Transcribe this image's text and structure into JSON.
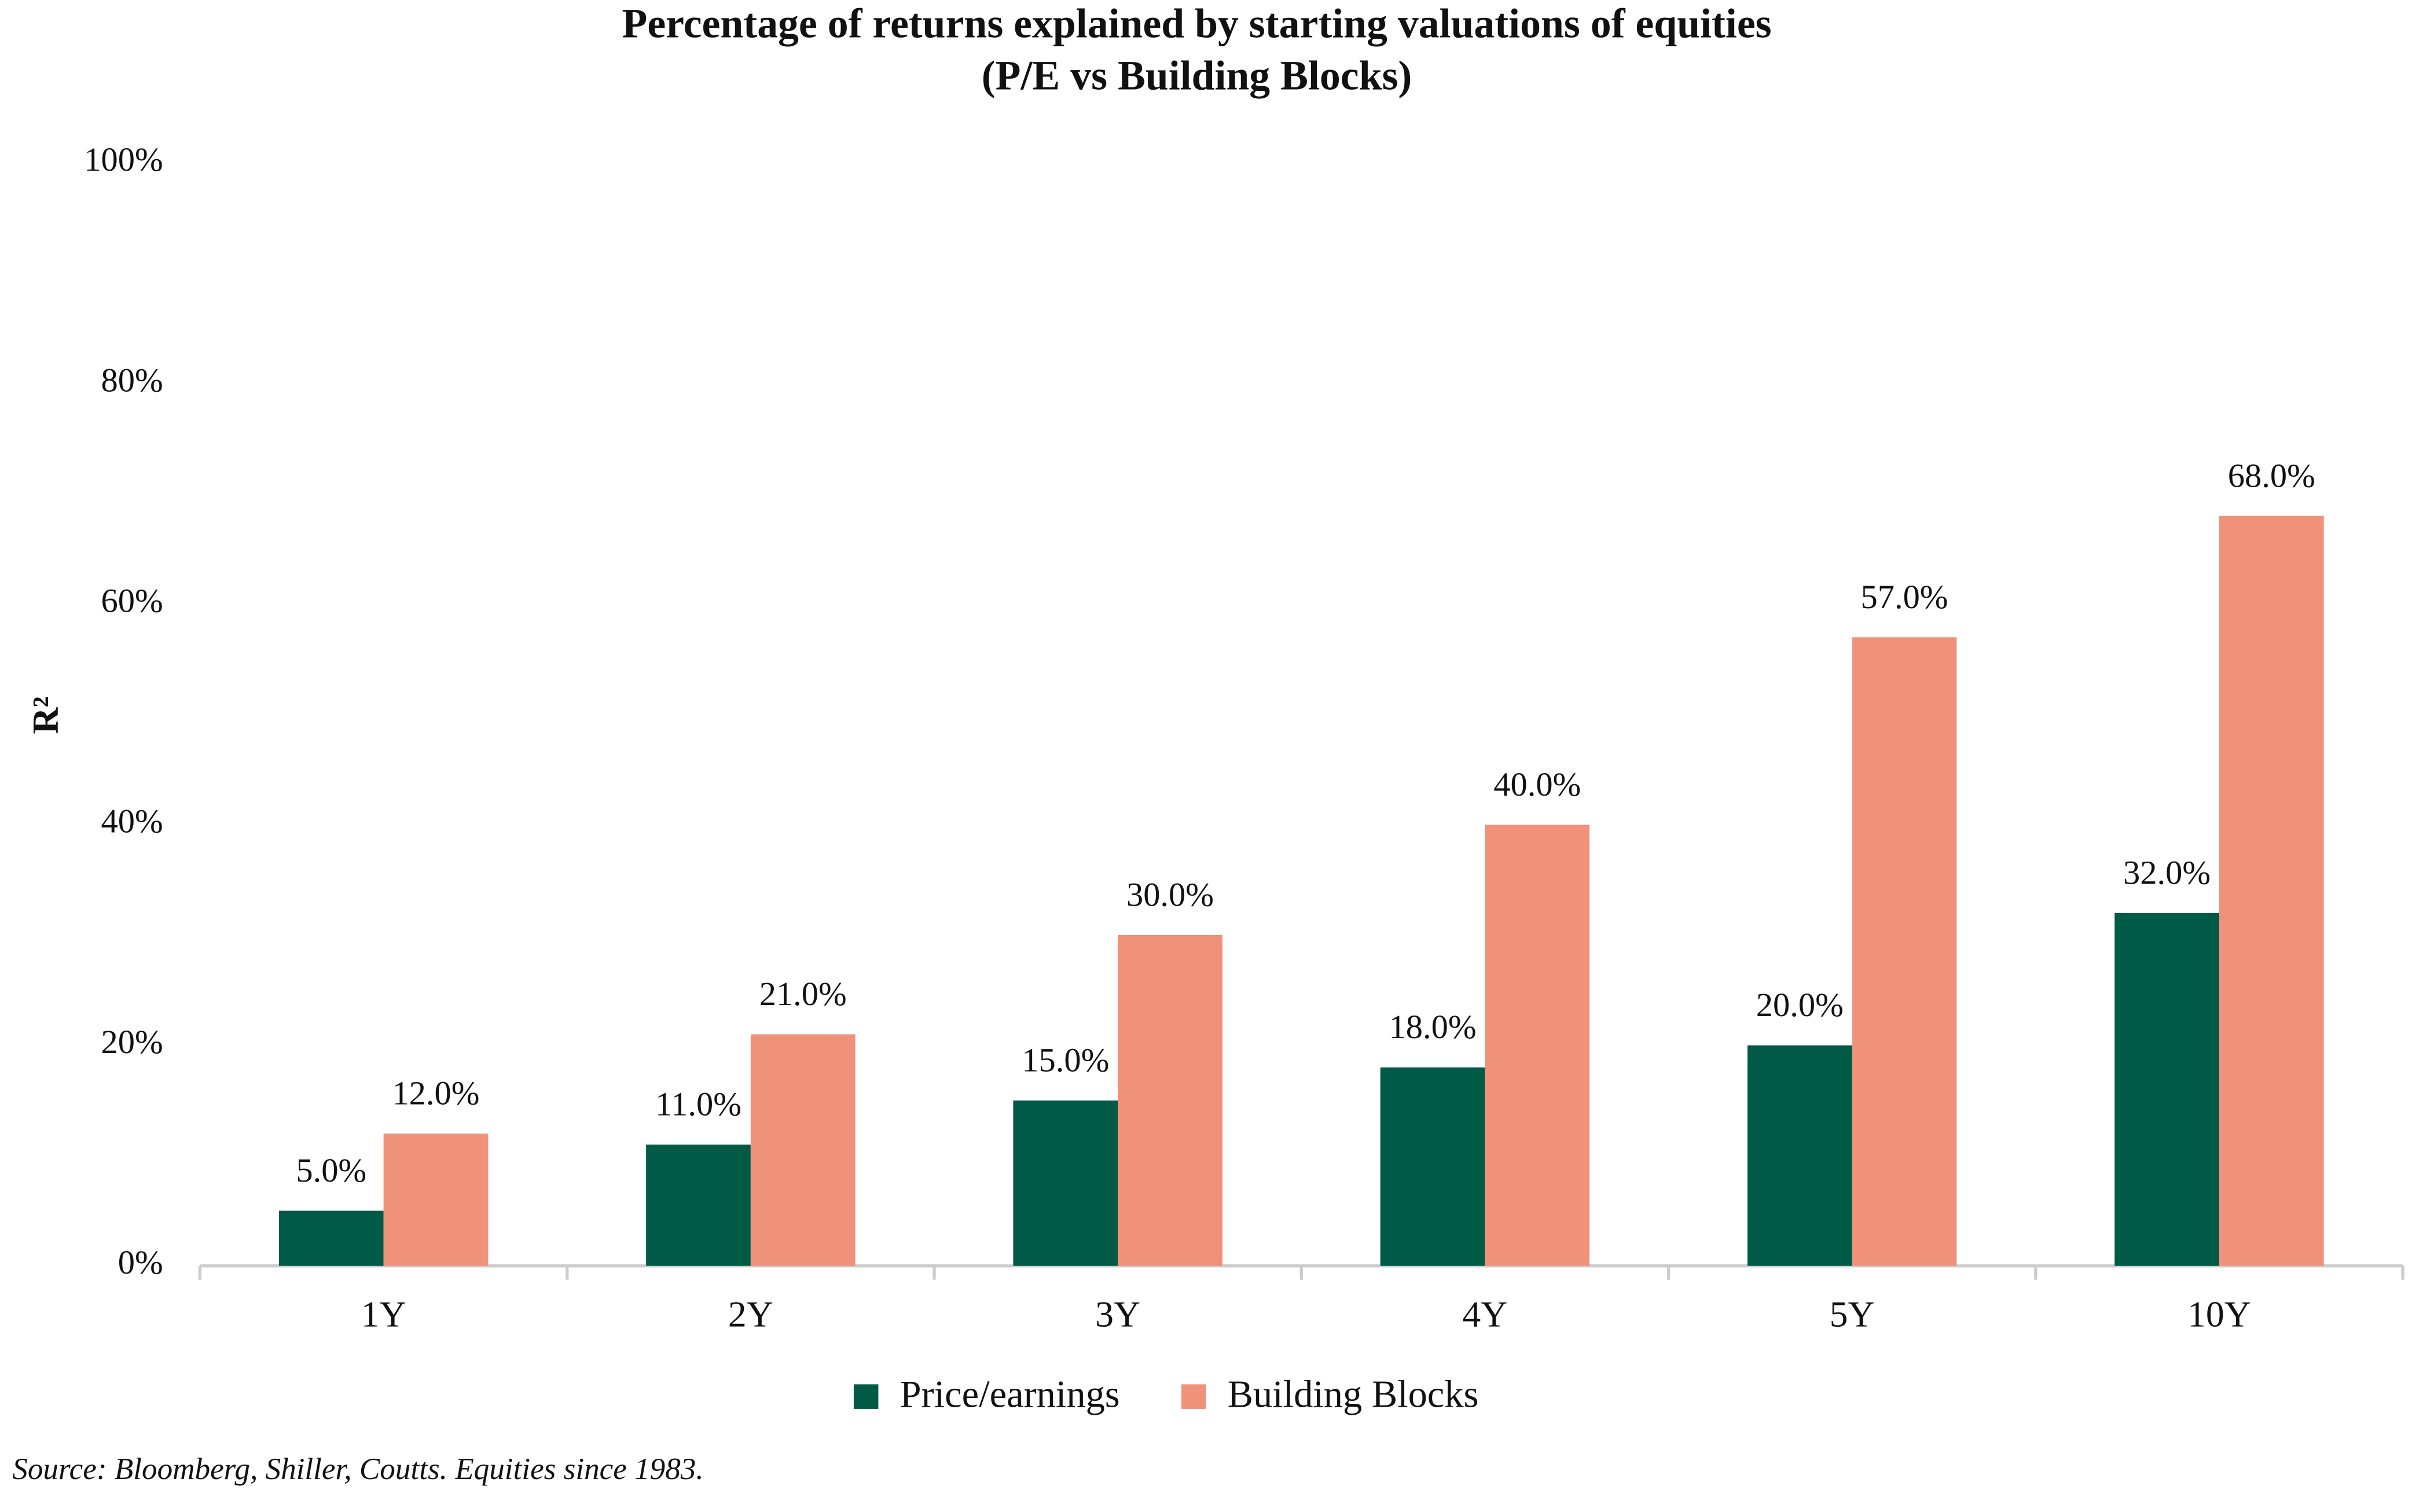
{
  "chart_data": {
    "type": "bar",
    "title": "Percentage of returns explained by starting valuations of equities",
    "subtitle": "(P/E vs Building Blocks)",
    "y_label": "R²",
    "categories": [
      "1Y",
      "2Y",
      "3Y",
      "4Y",
      "5Y",
      "10Y"
    ],
    "series": [
      {
        "name": "Price/earnings",
        "color": "#005a46",
        "values": [
          5,
          11,
          15,
          18,
          20,
          32
        ],
        "value_labels": [
          "5.0%",
          "11.0%",
          "15.0%",
          "18.0%",
          "20.0%",
          "32.0%"
        ]
      },
      {
        "name": "Building Blocks",
        "color": "#f0917a",
        "values": [
          12,
          21,
          30,
          40,
          57,
          68
        ],
        "value_labels": [
          "12.0%",
          "21.0%",
          "30.0%",
          "40.0%",
          "57.0%",
          "68.0%"
        ]
      }
    ],
    "ylim": [
      0,
      100
    ],
    "yticks": [
      {
        "value": 0,
        "label": "0%"
      },
      {
        "value": 20,
        "label": "20%"
      },
      {
        "value": 40,
        "label": "40%"
      },
      {
        "value": 60,
        "label": "60%"
      },
      {
        "value": 80,
        "label": "80%"
      },
      {
        "value": 100,
        "label": "100%"
      }
    ],
    "grid": false,
    "legend": "bottom",
    "source": "Source: Bloomberg, Shiller, Coutts. Equities since 1983."
  }
}
